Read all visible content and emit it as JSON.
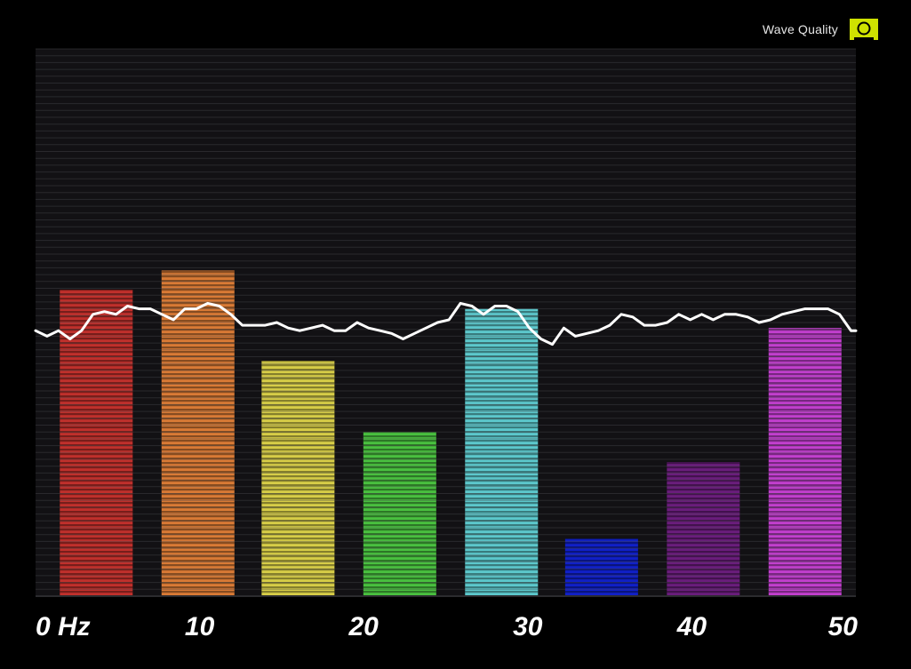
{
  "header": {
    "wave_quality_label": "Wave Quality",
    "wave_quality_icon": "speaker-quality-icon",
    "wave_quality_icon_color": "#cfe200"
  },
  "chart_data": {
    "type": "bar",
    "title": "",
    "xlabel": "",
    "ylabel": "",
    "x_axis_range_hz": [
      0,
      50
    ],
    "ylim": [
      0,
      100
    ],
    "grid": true,
    "legend": "none",
    "x_tick_labels": [
      {
        "hz": 0,
        "label": "0 Hz"
      },
      {
        "hz": 10,
        "label": "10"
      },
      {
        "hz": 20,
        "label": "20"
      },
      {
        "hz": 30,
        "label": "30"
      },
      {
        "hz": 40,
        "label": "40"
      },
      {
        "hz": 50,
        "label": "50"
      }
    ],
    "bars": [
      {
        "center_hz": 3.7,
        "value": 56,
        "color": "#c0302c"
      },
      {
        "center_hz": 9.9,
        "value": 59.5,
        "color": "#d97a35"
      },
      {
        "center_hz": 16.0,
        "value": 43,
        "color": "#d7cd47"
      },
      {
        "center_hz": 22.2,
        "value": 30,
        "color": "#49c03f"
      },
      {
        "center_hz": 28.4,
        "value": 52.5,
        "color": "#5cc8cc"
      },
      {
        "center_hz": 34.5,
        "value": 10.5,
        "color": "#1020c8"
      },
      {
        "center_hz": 40.7,
        "value": 24.5,
        "color": "#6a1d7c"
      },
      {
        "center_hz": 46.9,
        "value": 49,
        "color": "#c23fce"
      }
    ],
    "series": [
      {
        "type": "line",
        "color": "#ffffff",
        "x": [
          0,
          0.7,
          1.4,
          2.1,
          2.8,
          3.5,
          4.2,
          4.9,
          5.6,
          6.3,
          7.0,
          7.7,
          8.4,
          9.1,
          9.8,
          10.5,
          11.2,
          11.9,
          12.6,
          13.3,
          14.0,
          14.7,
          15.4,
          16.1,
          16.8,
          17.5,
          18.2,
          18.9,
          19.6,
          20.3,
          21.0,
          21.7,
          22.4,
          23.1,
          23.8,
          24.5,
          25.2,
          25.9,
          26.6,
          27.3,
          28.0,
          28.7,
          29.4,
          30.1,
          30.8,
          31.5,
          32.2,
          32.9,
          33.6,
          34.3,
          35.0,
          35.7,
          36.4,
          37.1,
          37.8,
          38.5,
          39.2,
          39.9,
          40.6,
          41.3,
          42.0,
          42.7,
          43.4,
          44.1,
          44.8,
          45.5,
          46.2,
          46.9,
          47.6,
          48.3,
          49.0,
          49.7,
          50.0
        ],
        "values": [
          48.5,
          47.5,
          48.5,
          47,
          48.5,
          51.5,
          52,
          51.5,
          53,
          52.5,
          52.5,
          51.5,
          50.5,
          52.5,
          52.5,
          53.5,
          53,
          51.5,
          49.5,
          49.5,
          49.5,
          50,
          49,
          48.5,
          49,
          49.5,
          48.5,
          48.5,
          50,
          49,
          48.5,
          48,
          47,
          48,
          49,
          50,
          50.5,
          53.5,
          53,
          51.5,
          53,
          53,
          52,
          49,
          47,
          46,
          49,
          47.5,
          48,
          48.5,
          49.5,
          51.5,
          51,
          49.5,
          49.5,
          50,
          51.5,
          50.5,
          51.5,
          50.5,
          51.5,
          51.5,
          51,
          50,
          50.5,
          51.5,
          52,
          52.5,
          52.5,
          52.5,
          51.5,
          48.5,
          48.5
        ]
      }
    ]
  }
}
